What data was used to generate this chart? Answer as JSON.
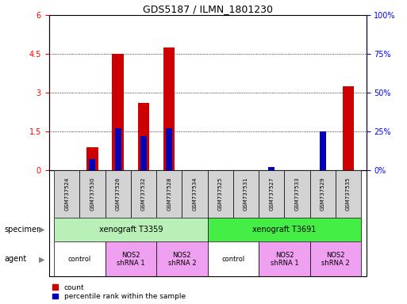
{
  "title": "GDS5187 / ILMN_1801230",
  "samples": [
    "GSM737524",
    "GSM737530",
    "GSM737526",
    "GSM737532",
    "GSM737528",
    "GSM737534",
    "GSM737525",
    "GSM737531",
    "GSM737527",
    "GSM737533",
    "GSM737529",
    "GSM737535"
  ],
  "red_values": [
    0,
    0.9,
    4.5,
    2.6,
    4.75,
    0,
    0,
    0,
    0,
    0,
    0,
    3.25
  ],
  "blue_values": [
    0,
    7,
    27,
    22,
    27,
    0,
    0,
    0,
    2,
    0,
    25,
    0
  ],
  "ylim_left": [
    0,
    6
  ],
  "ylim_right": [
    0,
    100
  ],
  "yticks_left": [
    0,
    1.5,
    3,
    4.5,
    6
  ],
  "yticks_right": [
    0,
    25,
    50,
    75,
    100
  ],
  "specimen_labels": [
    "xenograft T3359",
    "xenograft T3691"
  ],
  "specimen_spans": [
    [
      0,
      5
    ],
    [
      6,
      11
    ]
  ],
  "agent_groups": [
    {
      "label": "control",
      "span": [
        0,
        1
      ],
      "pink": false
    },
    {
      "label": "NOS2\nshRNA 1",
      "span": [
        2,
        3
      ],
      "pink": true
    },
    {
      "label": "NOS2\nshRNA 2",
      "span": [
        4,
        5
      ],
      "pink": true
    },
    {
      "label": "control",
      "span": [
        6,
        7
      ],
      "pink": false
    },
    {
      "label": "NOS2\nshRNA 1",
      "span": [
        8,
        9
      ],
      "pink": true
    },
    {
      "label": "NOS2\nshRNA 2",
      "span": [
        10,
        11
      ],
      "pink": true
    }
  ],
  "red_color": "#cc0000",
  "blue_color": "#0000bb",
  "specimen_bg_light": "#b8f0b8",
  "specimen_bg_dark": "#44ee44",
  "agent_pink": "#f0a0f0",
  "agent_white": "#ffffff",
  "xticklabel_bg": "#d3d3d3",
  "red_bar_width": 0.45,
  "blue_bar_width": 0.25
}
